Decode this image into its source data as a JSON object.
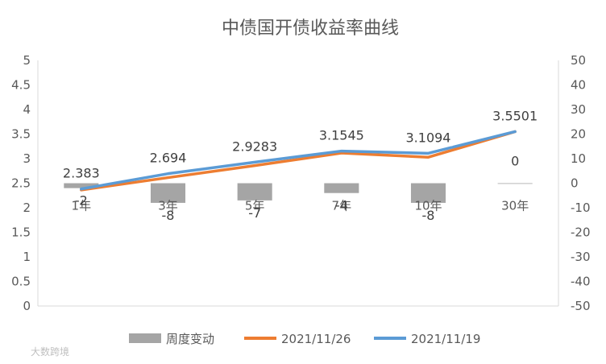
{
  "chart_data": {
    "type": "bar+line",
    "title": "中债国开债收益率曲线",
    "categories": [
      "1年",
      "3年",
      "5年",
      "7年",
      "10年",
      "30年"
    ],
    "left_axis": {
      "min": 0,
      "max": 5,
      "step": 0.5,
      "tick_labels": [
        "0",
        "0.5",
        "1",
        "1.5",
        "2",
        "2.5",
        "3",
        "3.5",
        "4",
        "4.5",
        "5"
      ]
    },
    "right_axis": {
      "min": -50,
      "max": 50,
      "step": 10,
      "tick_labels": [
        "-50",
        "-40",
        "-30",
        "-20",
        "-10",
        "0",
        "10",
        "20",
        "30",
        "40",
        "50"
      ]
    },
    "bar_series": {
      "name": "周度变动",
      "axis": "right",
      "color": "#a5a5a5",
      "values": [
        -2,
        -8,
        -7,
        -4,
        -8,
        0
      ],
      "labels": [
        "-2",
        "-8",
        "-7",
        "-4",
        "-8",
        "0"
      ]
    },
    "line_series": [
      {
        "name": "2021/11/26",
        "axis": "left",
        "color": "#ed7d31",
        "values": [
          2.363,
          2.614,
          2.8583,
          3.1145,
          3.0294,
          3.5501
        ]
      },
      {
        "name": "2021/11/19",
        "axis": "left",
        "color": "#5b9bd5",
        "values": [
          2.383,
          2.694,
          2.9283,
          3.1545,
          3.1094,
          3.5501
        ],
        "labels": [
          "2.383",
          "2.694",
          "2.9283",
          "3.1545",
          "3.1094",
          "3.5501"
        ]
      }
    ],
    "legend_position": "bottom",
    "grid": false
  },
  "watermark": "大数跨境"
}
